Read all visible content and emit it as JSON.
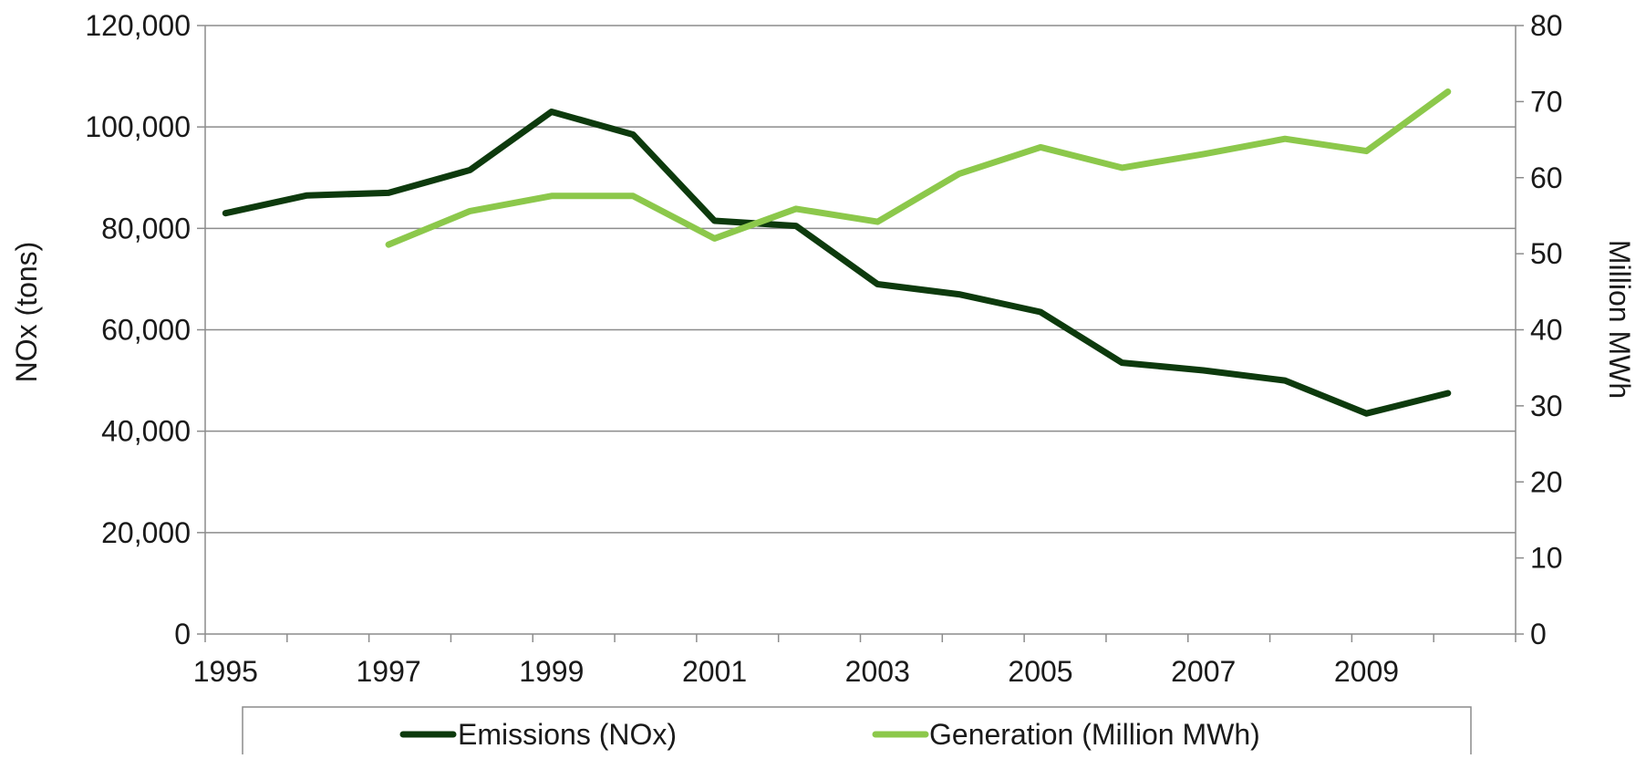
{
  "chart_data": {
    "type": "line",
    "x": [
      1995,
      1996,
      1997,
      1998,
      1999,
      2000,
      2001,
      2002,
      2003,
      2004,
      2005,
      2006,
      2007,
      2008,
      2009,
      2010
    ],
    "x_tick_labels": [
      "1995",
      "1997",
      "1999",
      "2001",
      "2003",
      "2005",
      "2007",
      "2009"
    ],
    "ylabel": "NOx (tons)",
    "y2label": "Million MWh",
    "ylim": [
      0,
      120000
    ],
    "y2lim": [
      0,
      80
    ],
    "y_tick_labels": [
      "0",
      "20,000",
      "40,000",
      "60,000",
      "80,000",
      "100,000",
      "120,000"
    ],
    "y2_tick_labels": [
      "0",
      "10",
      "20",
      "30",
      "40",
      "50",
      "60",
      "70",
      "80"
    ],
    "grid": true,
    "legend_position": "bottom",
    "series": [
      {
        "name": "Emissions (NOx)",
        "axis": "left",
        "color": "#0d3a0d",
        "values": [
          83000,
          86500,
          87000,
          91500,
          103000,
          98500,
          81500,
          80500,
          69000,
          67000,
          63500,
          53500,
          52000,
          50000,
          43500,
          47500
        ]
      },
      {
        "name": "Generation (Million MWh)",
        "axis": "right",
        "color": "#8cc84b",
        "values": [
          null,
          null,
          51.2,
          55.6,
          57.6,
          57.6,
          52.0,
          55.9,
          54.2,
          60.5,
          64.0,
          61.3,
          63.1,
          65.1,
          63.5,
          71.3
        ]
      }
    ]
  }
}
